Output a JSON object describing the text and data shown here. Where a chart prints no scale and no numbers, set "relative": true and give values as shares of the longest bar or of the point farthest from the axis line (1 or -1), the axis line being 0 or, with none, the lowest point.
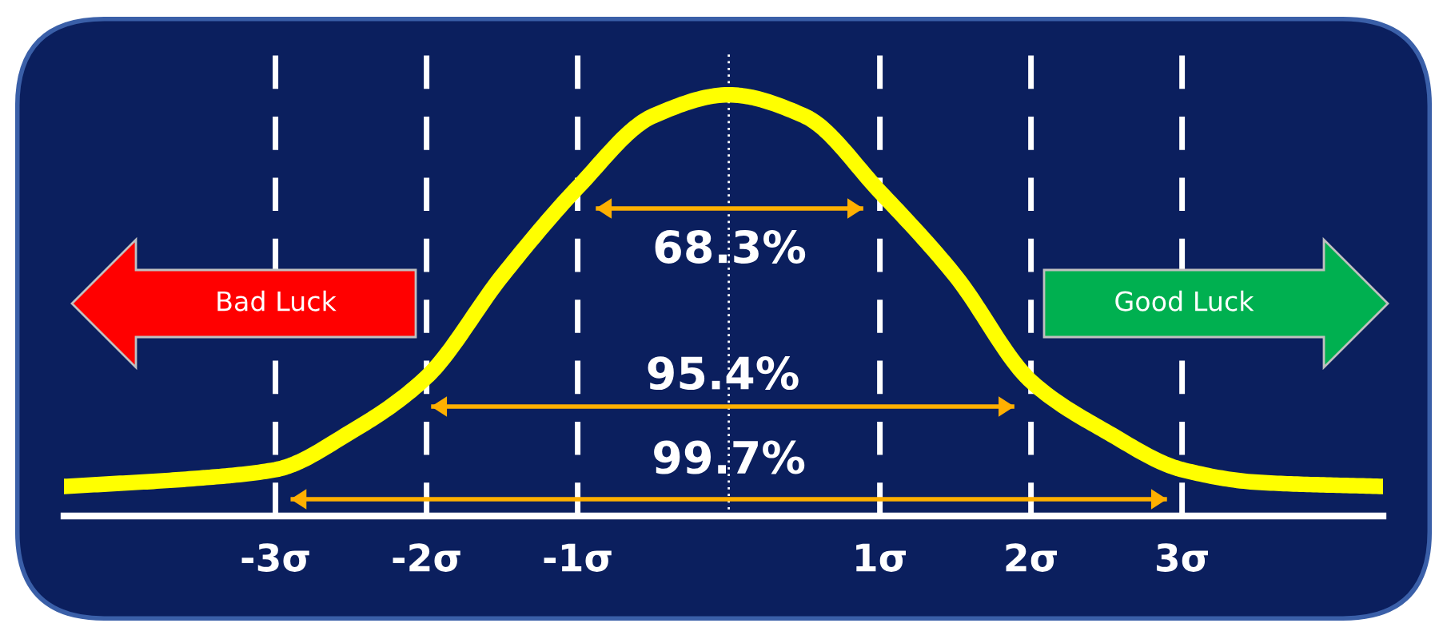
{
  "chart_data": {
    "type": "line",
    "relative": true,
    "xlim": [
      -4.4,
      4.33
    ],
    "xticks": [
      {
        "value": -3,
        "label": "-3σ"
      },
      {
        "value": -2,
        "label": "-2σ"
      },
      {
        "value": -1,
        "label": "-1σ"
      },
      {
        "value": 1,
        "label": "1σ"
      },
      {
        "value": 2,
        "label": "2σ"
      },
      {
        "value": 3,
        "label": "3σ"
      }
    ],
    "tick_labels": "x",
    "series": [
      {
        "color": "#ffff00",
        "x": [
          -4.4,
          -3.5,
          -3,
          -2.5,
          -2,
          -1.5,
          -1,
          -0.5,
          0,
          0.5,
          1,
          1.5,
          2,
          2.5,
          3,
          3.5,
          4.33
        ],
        "values": [
          0.07,
          0.09,
          0.11,
          0.2,
          0.33,
          0.57,
          0.78,
          0.95,
          1.0,
          0.95,
          0.77,
          0.57,
          0.32,
          0.2,
          0.11,
          0.08,
          0.07
        ]
      },
      {
        "color": "#ffb000",
        "x": [
          -0.88,
          0.89
        ],
        "values": [
          0.73,
          0.73
        ]
      },
      {
        "color": "#ffb000",
        "x": [
          -1.97,
          1.89
        ],
        "values": [
          0.26,
          0.26
        ]
      },
      {
        "color": "#ffb000",
        "x": [
          -2.9,
          2.9
        ],
        "values": [
          0.04,
          0.04
        ]
      }
    ],
    "ref_lines": [
      {
        "axis": "x",
        "value": -3,
        "color": "#ffffff",
        "line_style": "dashed"
      },
      {
        "axis": "x",
        "value": -2,
        "color": "#ffffff",
        "line_style": "dashed"
      },
      {
        "axis": "x",
        "value": -1,
        "color": "#ffffff",
        "line_style": "dashed"
      },
      {
        "axis": "x",
        "value": 0,
        "color": "#ffffff",
        "line_style": "dotted"
      },
      {
        "axis": "x",
        "value": 1,
        "color": "#ffffff",
        "line_style": "dashed"
      },
      {
        "axis": "x",
        "value": 2,
        "color": "#ffffff",
        "line_style": "dashed"
      },
      {
        "axis": "x",
        "value": 3,
        "color": "#ffffff",
        "line_style": "dashed"
      }
    ],
    "annotations": [
      "68.3%",
      "95.4%",
      "99.7%",
      "Bad Luck",
      "Good Luck"
    ]
  }
}
